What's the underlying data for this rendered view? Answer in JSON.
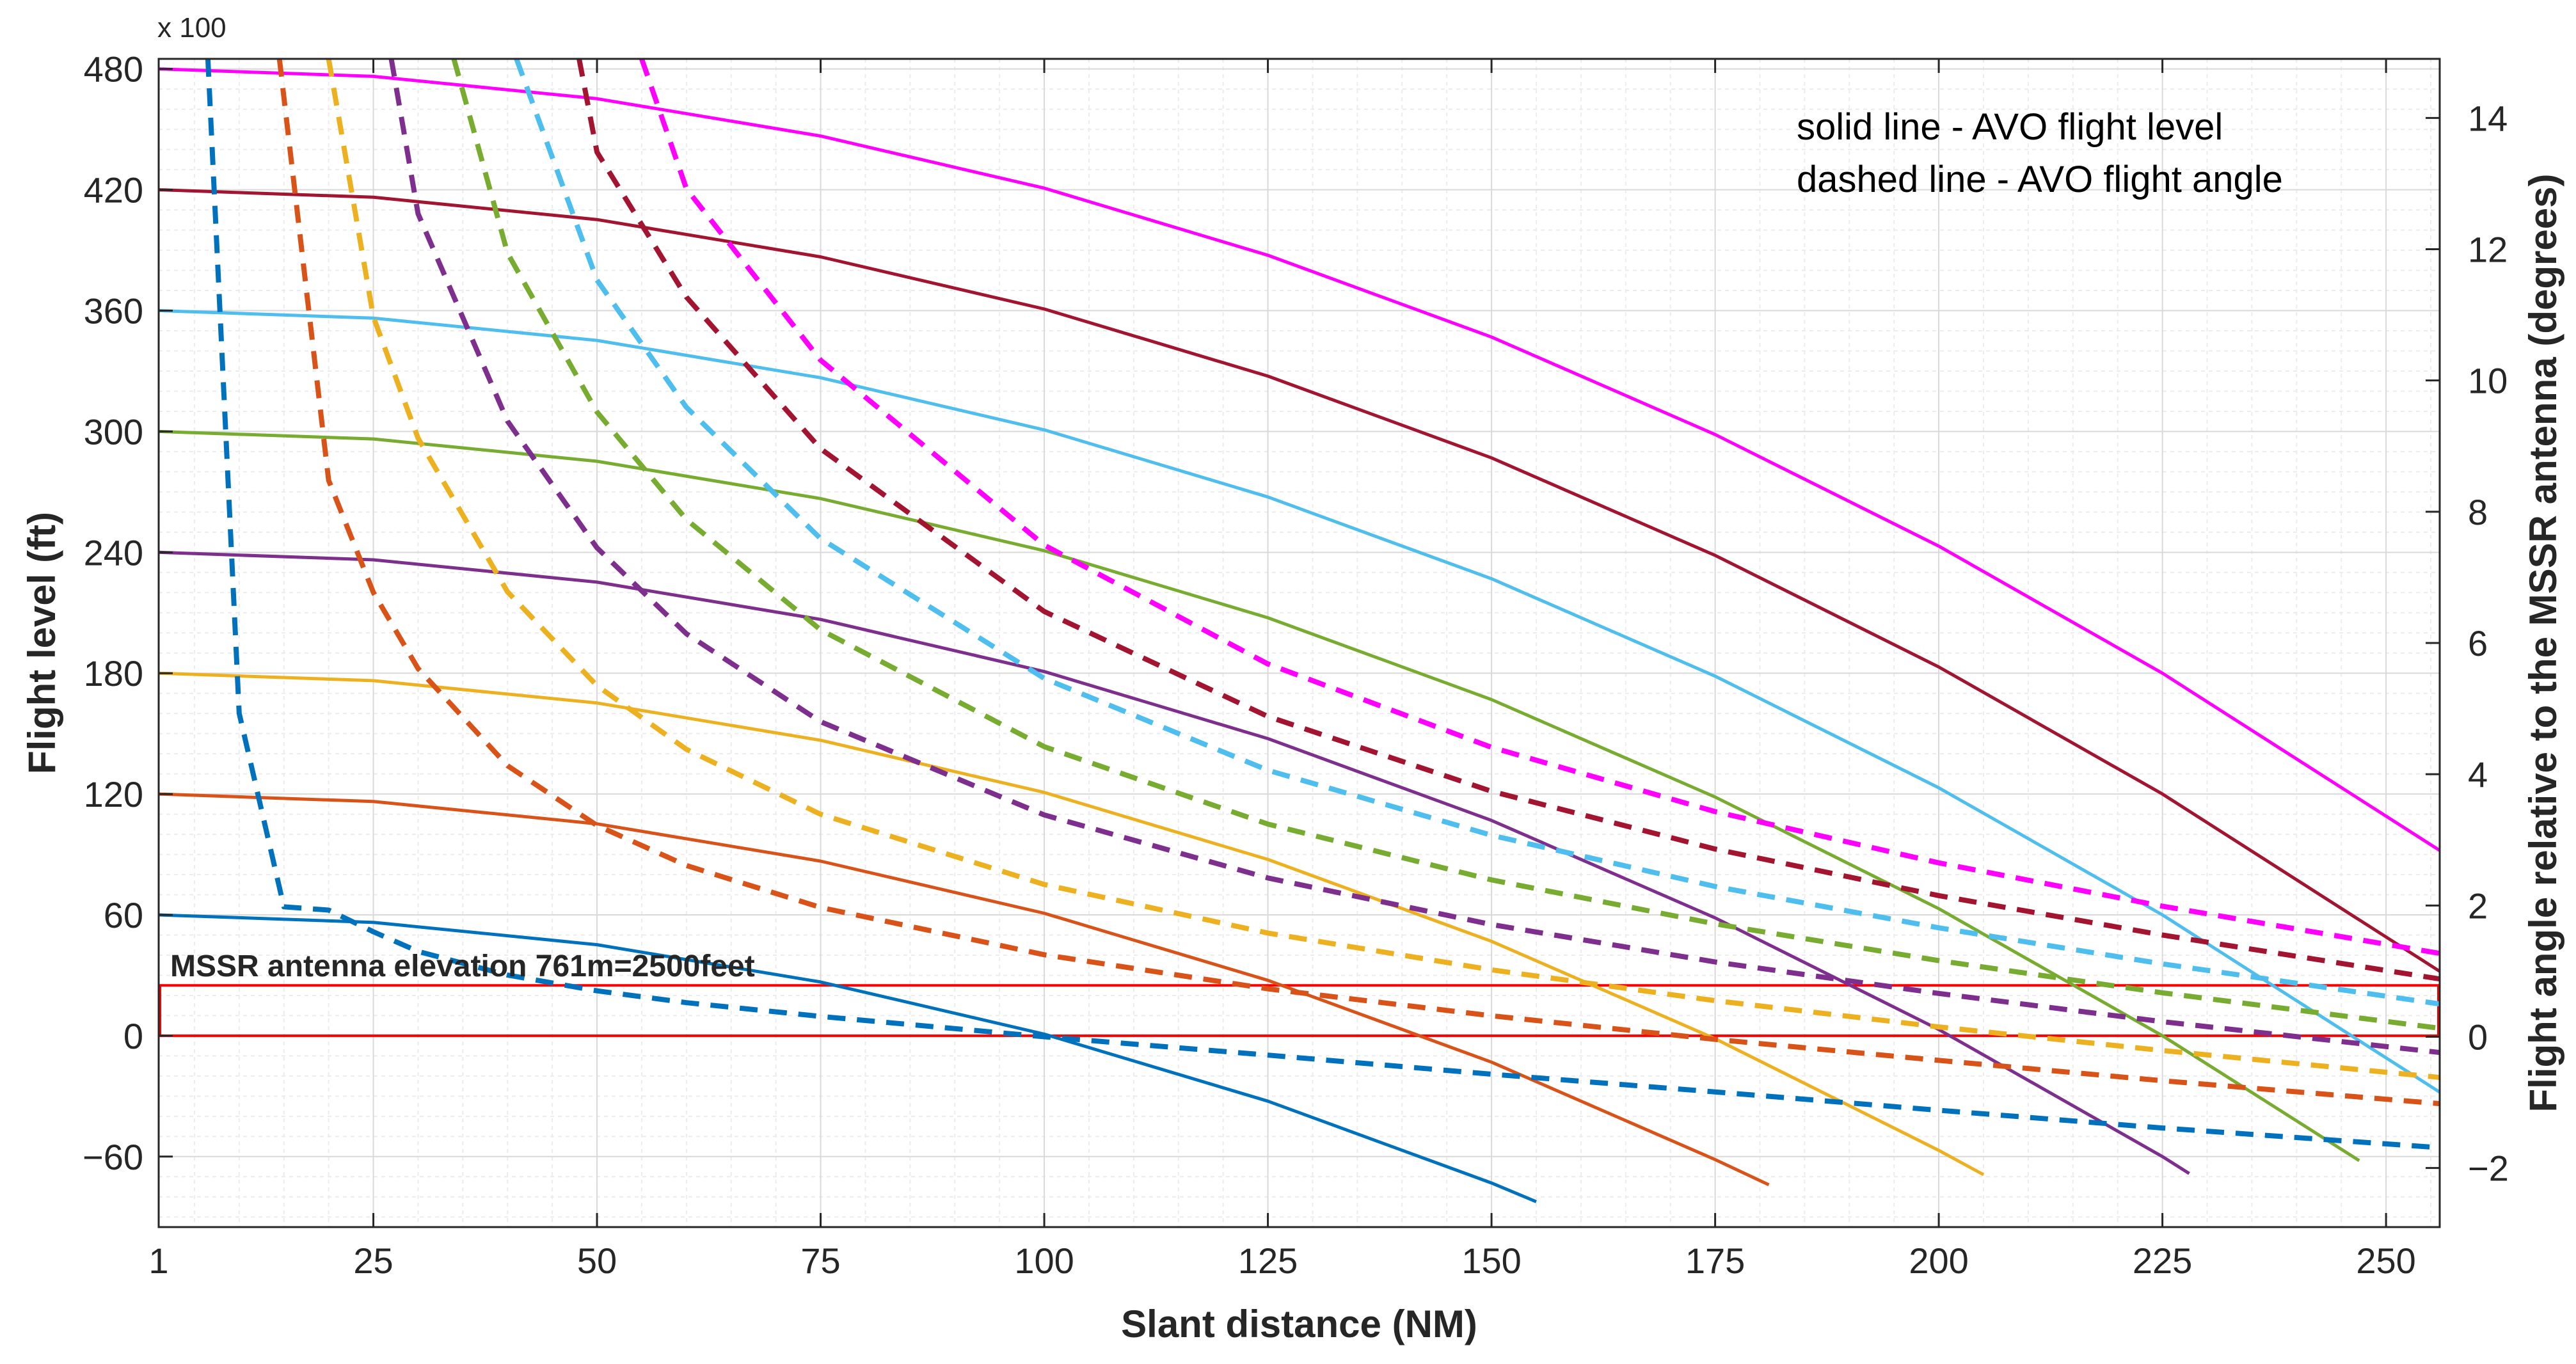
{
  "chart_data": {
    "type": "line",
    "title": "",
    "xlabel": "Slant distance (NM)",
    "ylabel_left": "Flight level (ft)",
    "ylabel_right": "Flight angle relative to the MSSR antenna (degrees)",
    "left_axis_multiplier": "x 100",
    "xlim": [
      1,
      256
    ],
    "ylim_left": [
      -95,
      485
    ],
    "ylim_right": [
      -2.9,
      14.9
    ],
    "x_ticks": [
      1,
      25,
      50,
      75,
      100,
      125,
      150,
      175,
      200,
      225,
      250
    ],
    "x_tick_labels": [
      "1",
      "25",
      "50",
      "75",
      "100",
      "125",
      "150",
      "175",
      "200",
      "225",
      "250"
    ],
    "y_left_ticks": [
      -60,
      0,
      60,
      120,
      180,
      240,
      300,
      360,
      420,
      480
    ],
    "y_left_tick_labels": [
      "−60",
      "0",
      "60",
      "120",
      "180",
      "240",
      "300",
      "360",
      "420",
      "480"
    ],
    "y_right_ticks": [
      -2,
      0,
      2,
      4,
      6,
      8,
      10,
      12,
      14
    ],
    "y_right_tick_labels": [
      "−2",
      "0",
      "2",
      "4",
      "6",
      "8",
      "10",
      "12",
      "14"
    ],
    "grid": true,
    "legend": {
      "position": "top-right",
      "entries": [
        "solid line - AVO flight level",
        "dashed line - AVO flight angle"
      ]
    },
    "band": {
      "label": "MSSR antenna elevation 761m=2500feet",
      "y_range_left": [
        0,
        25
      ],
      "color": "#ff0000"
    },
    "flight_levels": [
      60,
      120,
      180,
      240,
      300,
      360,
      420,
      480
    ],
    "series": [
      {
        "name": "FL060 flight level",
        "style": "solid",
        "axis": "left",
        "color": "#0072bd",
        "x": [
          1,
          25,
          50,
          75,
          100,
          125,
          150,
          155
        ],
        "y": [
          60,
          56.3,
          45.2,
          26.7,
          0.8,
          -32.5,
          -73.1,
          -82.4
        ]
      },
      {
        "name": "FL120 flight level",
        "style": "solid",
        "axis": "left",
        "color": "#d95319",
        "x": [
          1,
          25,
          50,
          75,
          100,
          125,
          150,
          175,
          181
        ],
        "y": [
          120,
          116.3,
          105.2,
          86.7,
          60.8,
          27.5,
          -13.1,
          -61.5,
          -74
        ]
      },
      {
        "name": "FL180 flight level",
        "style": "solid",
        "axis": "left",
        "color": "#edb120",
        "x": [
          1,
          25,
          50,
          75,
          100,
          125,
          150,
          175,
          200,
          205
        ],
        "y": [
          180,
          176.3,
          165.2,
          146.7,
          120.8,
          87.5,
          46.9,
          -1.5,
          -56.9,
          -69
        ]
      },
      {
        "name": "FL240 flight level",
        "style": "solid",
        "axis": "left",
        "color": "#7e2f8e",
        "x": [
          1,
          25,
          50,
          75,
          100,
          125,
          150,
          175,
          200,
          225,
          228
        ],
        "y": [
          240,
          236.3,
          225.2,
          206.7,
          180.8,
          147.5,
          106.9,
          58.5,
          3.1,
          -60,
          -68.4
        ]
      },
      {
        "name": "FL300 flight level",
        "style": "solid",
        "axis": "left",
        "color": "#77ac30",
        "x": [
          1,
          25,
          50,
          75,
          100,
          125,
          150,
          175,
          200,
          225,
          247
        ],
        "y": [
          300,
          296.3,
          285.2,
          266.7,
          240.8,
          207.5,
          166.9,
          118.5,
          63.1,
          0,
          -62
        ]
      },
      {
        "name": "FL360 flight level",
        "style": "solid",
        "axis": "left",
        "color": "#4dbeee",
        "x": [
          1,
          25,
          50,
          75,
          100,
          125,
          150,
          175,
          200,
          225,
          256
        ],
        "y": [
          360,
          356.3,
          345.2,
          326.7,
          300.8,
          267.5,
          226.9,
          178.5,
          123.1,
          60,
          -28
        ]
      },
      {
        "name": "FL420 flight level",
        "style": "solid",
        "axis": "left",
        "color": "#a2142f",
        "x": [
          1,
          25,
          50,
          75,
          100,
          125,
          150,
          175,
          200,
          225,
          256
        ],
        "y": [
          420,
          416.3,
          405.2,
          386.7,
          360.8,
          327.5,
          286.9,
          238.5,
          183.1,
          120,
          32
        ]
      },
      {
        "name": "FL480 flight level",
        "style": "solid",
        "axis": "left",
        "color": "#ff00ff",
        "x": [
          1,
          25,
          50,
          75,
          100,
          125,
          150,
          175,
          200,
          225,
          256
        ],
        "y": [
          480,
          476.3,
          465.2,
          446.7,
          420.8,
          387.5,
          346.9,
          298.5,
          243.1,
          180,
          92
        ]
      },
      {
        "name": "FL060 flight angle",
        "style": "dashed",
        "axis": "right",
        "color": "#0072bd",
        "x": [
          6.5,
          10,
          15,
          20,
          25,
          30,
          40,
          50,
          60,
          75,
          100,
          125,
          150,
          175,
          200,
          225,
          256
        ],
        "y": [
          14.9,
          4.93,
          1.98,
          1.93,
          1.6,
          1.3,
          0.94,
          0.7,
          0.52,
          0.31,
          -0.0,
          -0.28,
          -0.57,
          -0.84,
          -1.12,
          -1.39,
          -1.69
        ]
      },
      {
        "name": "FL120 flight angle",
        "style": "dashed",
        "axis": "right",
        "color": "#d95319",
        "x": [
          14.5,
          20,
          25,
          30,
          40,
          50,
          60,
          75,
          100,
          125,
          150,
          175,
          200,
          225,
          256
        ],
        "y": [
          14.9,
          8.48,
          6.77,
          5.61,
          4.13,
          3.22,
          2.61,
          1.97,
          1.25,
          0.73,
          0.32,
          -0.04,
          -0.36,
          -0.67,
          -1.02
        ]
      },
      {
        "name": "FL180 flight angle",
        "style": "dashed",
        "axis": "right",
        "color": "#edb120",
        "x": [
          20,
          25,
          30,
          40,
          50,
          60,
          75,
          100,
          125,
          150,
          175,
          200,
          225,
          256
        ],
        "y": [
          14.9,
          10.97,
          9.12,
          6.78,
          5.35,
          4.38,
          3.39,
          2.32,
          1.58,
          1.02,
          0.55,
          0.15,
          -0.21,
          -0.62
        ]
      },
      {
        "name": "FL240 flight angle",
        "style": "dashed",
        "axis": "right",
        "color": "#7e2f8e",
        "x": [
          27,
          30,
          40,
          50,
          60,
          75,
          100,
          125,
          150,
          175,
          200,
          225,
          256
        ],
        "y": [
          14.9,
          12.54,
          9.38,
          7.45,
          6.14,
          4.8,
          3.38,
          2.42,
          1.71,
          1.14,
          0.66,
          0.23,
          -0.24
        ]
      },
      {
        "name": "FL300 flight angle",
        "style": "dashed",
        "axis": "right",
        "color": "#77ac30",
        "x": [
          34,
          40,
          50,
          60,
          75,
          100,
          125,
          150,
          175,
          200,
          225,
          256
        ],
        "y": [
          14.9,
          11.94,
          9.52,
          7.88,
          6.2,
          4.42,
          3.24,
          2.39,
          1.72,
          1.16,
          0.67,
          0.13
        ]
      },
      {
        "name": "FL360 flight angle",
        "style": "dashed",
        "axis": "right",
        "color": "#4dbeee",
        "x": [
          41,
          50,
          60,
          75,
          100,
          125,
          150,
          175,
          200,
          225,
          256
        ],
        "y": [
          14.9,
          11.53,
          9.59,
          7.59,
          5.46,
          4.06,
          3.07,
          2.29,
          1.66,
          1.11,
          0.5
        ]
      },
      {
        "name": "FL420 flight angle",
        "style": "dashed",
        "axis": "right",
        "color": "#a2142f",
        "x": [
          48,
          50,
          60,
          75,
          100,
          125,
          150,
          175,
          200,
          225,
          256
        ],
        "y": [
          14.9,
          13.48,
          11.27,
          8.96,
          6.48,
          4.88,
          3.74,
          2.86,
          2.15,
          1.55,
          0.88
        ]
      },
      {
        "name": "FL480 flight angle",
        "style": "dashed",
        "axis": "right",
        "color": "#ff00ff",
        "x": [
          55,
          60,
          75,
          100,
          125,
          150,
          175,
          200,
          225,
          256
        ],
        "y": [
          14.9,
          12.92,
          10.31,
          7.49,
          5.68,
          4.41,
          3.43,
          2.65,
          1.99,
          1.27
        ]
      }
    ]
  }
}
